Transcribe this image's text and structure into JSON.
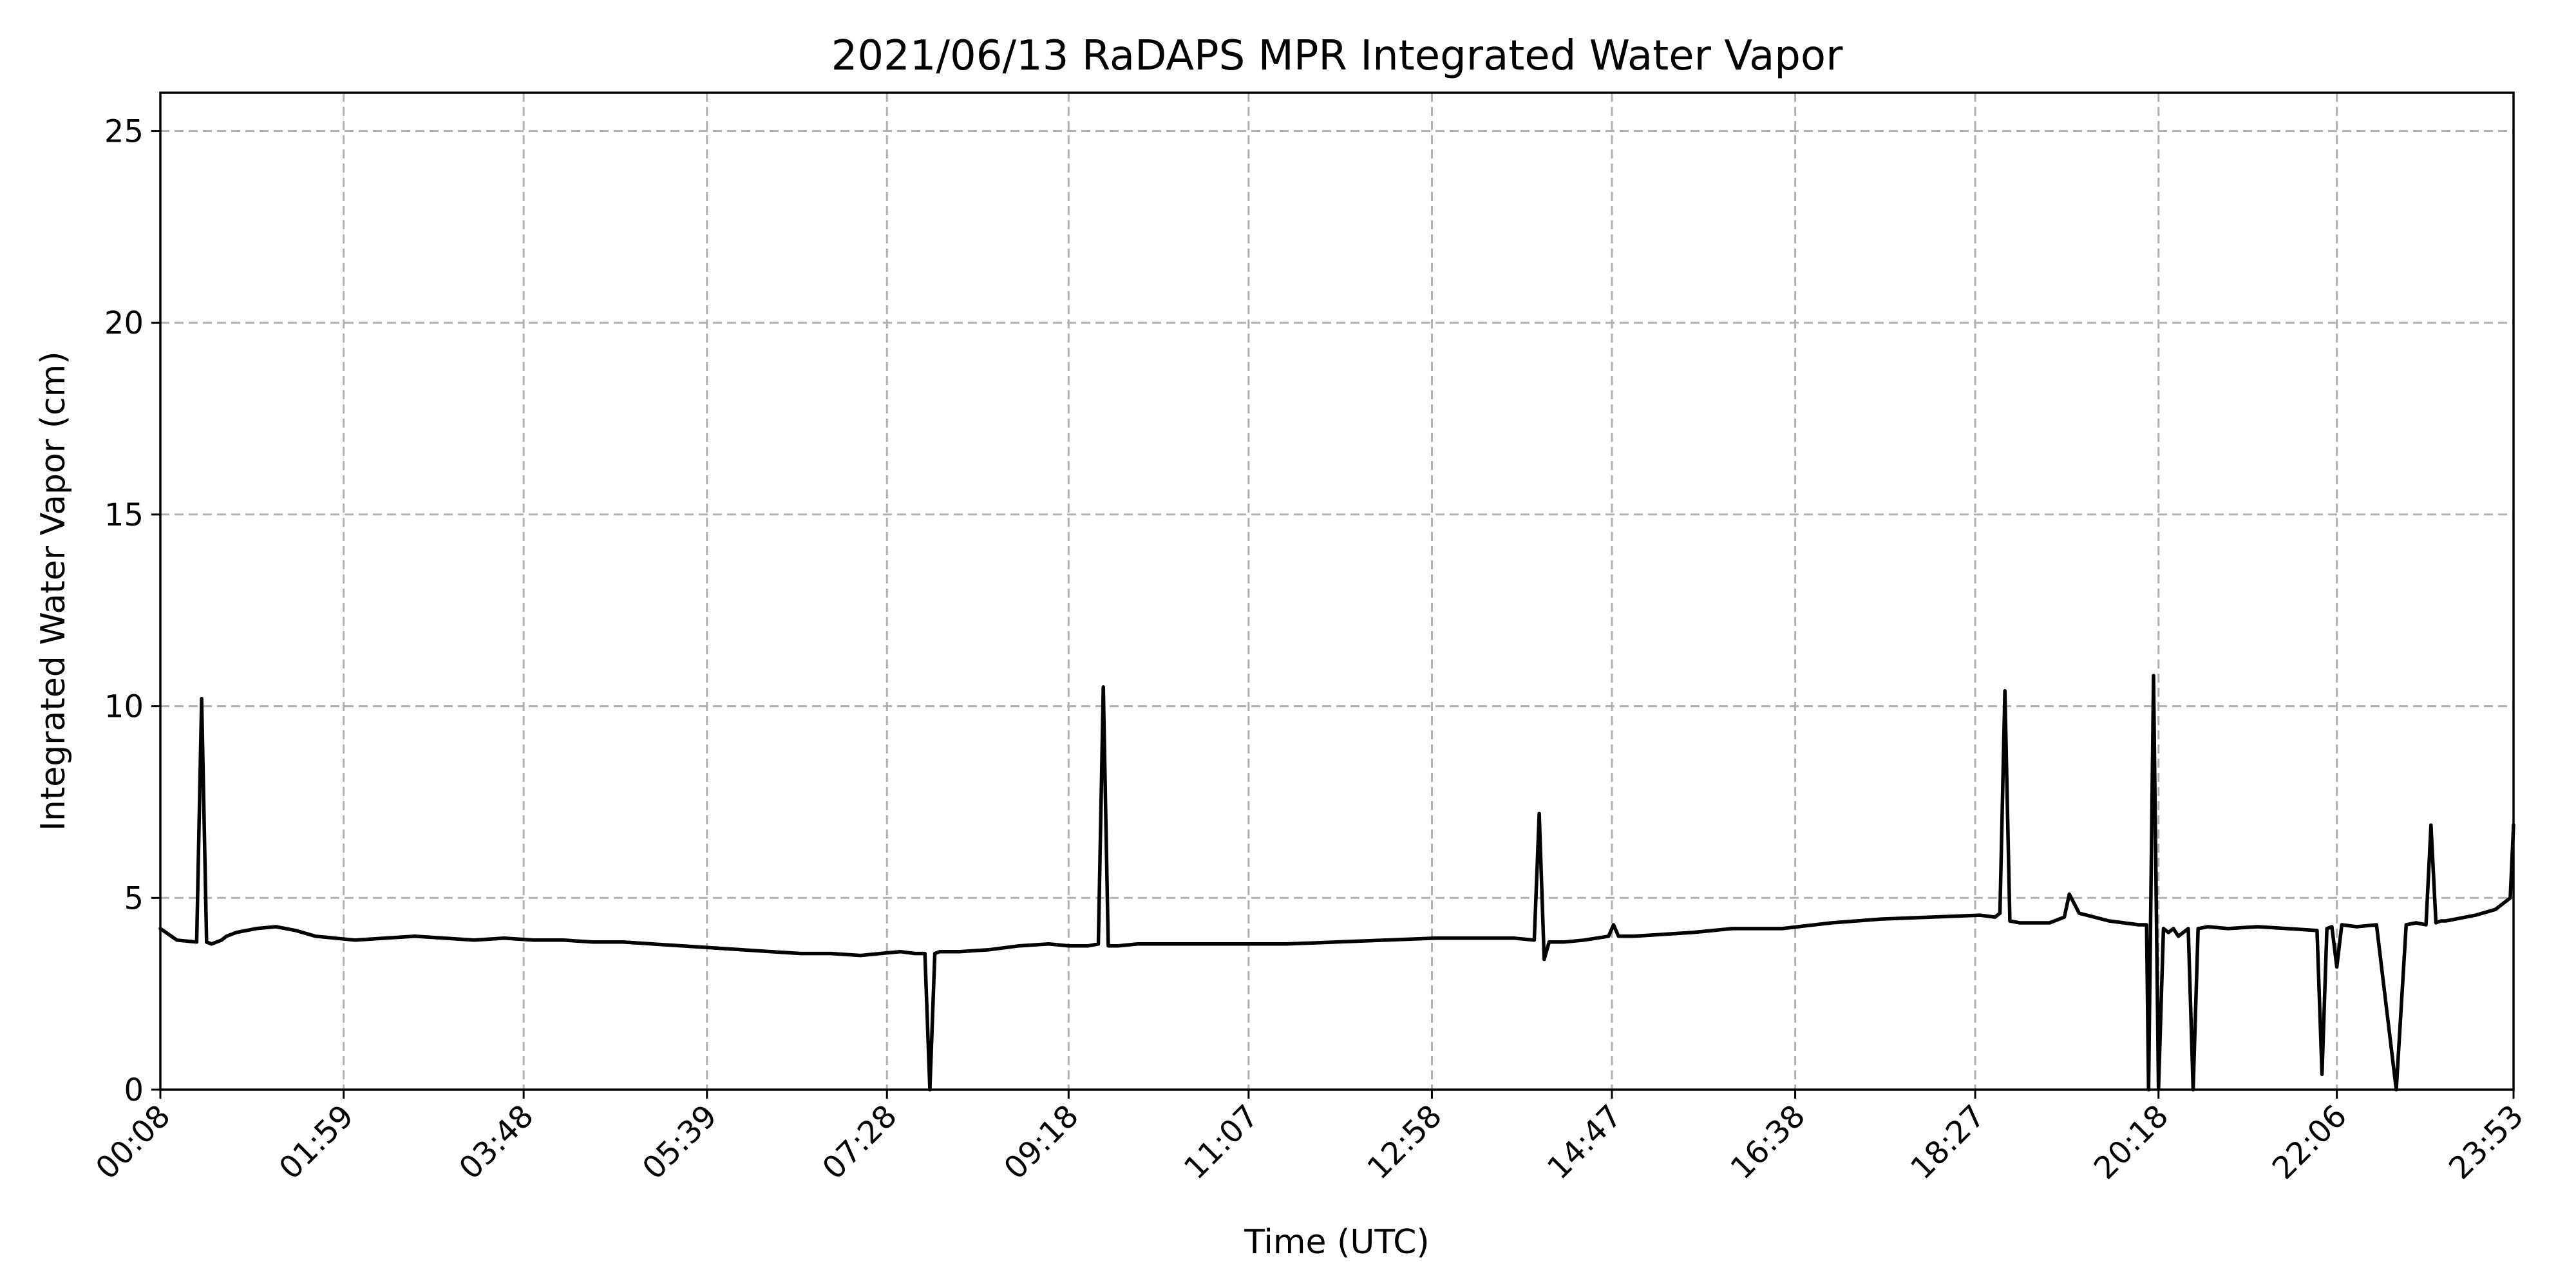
{
  "chart_data": {
    "type": "line",
    "title": "2021/06/13 RaDAPS MPR Integrated Water Vapor",
    "xlabel": "Time (UTC)",
    "ylabel": "Integrated Water Vapor (cm)",
    "x_unit": "hours (UTC)",
    "xlim": [
      0.1333,
      23.8833
    ],
    "ylim": [
      0,
      26
    ],
    "x_ticks": [
      {
        "value": 0.1333,
        "label": "00:08"
      },
      {
        "value": 1.9833,
        "label": "01:59"
      },
      {
        "value": 3.8,
        "label": "03:48"
      },
      {
        "value": 5.65,
        "label": "05:39"
      },
      {
        "value": 7.4667,
        "label": "07:28"
      },
      {
        "value": 9.3,
        "label": "09:18"
      },
      {
        "value": 11.1167,
        "label": "11:07"
      },
      {
        "value": 12.9667,
        "label": "12:58"
      },
      {
        "value": 14.7833,
        "label": "14:47"
      },
      {
        "value": 16.6333,
        "label": "16:38"
      },
      {
        "value": 18.45,
        "label": "18:27"
      },
      {
        "value": 20.3,
        "label": "20:18"
      },
      {
        "value": 22.1,
        "label": "22:06"
      },
      {
        "value": 23.8833,
        "label": "23:53"
      }
    ],
    "y_ticks": [
      {
        "value": 0,
        "label": "0"
      },
      {
        "value": 5,
        "label": "5"
      },
      {
        "value": 10,
        "label": "10"
      },
      {
        "value": 15,
        "label": "15"
      },
      {
        "value": 20,
        "label": "20"
      },
      {
        "value": 25,
        "label": "25"
      }
    ],
    "grid": true,
    "series": [
      {
        "color": "#000000",
        "x": [
          0.1333,
          0.3,
          0.5,
          0.55,
          0.6,
          0.65,
          0.7,
          0.75,
          0.8,
          0.9,
          1.1,
          1.3,
          1.5,
          1.7,
          1.9,
          2.1,
          2.4,
          2.7,
          3.0,
          3.3,
          3.6,
          3.9,
          4.2,
          4.5,
          4.8,
          5.1,
          5.4,
          5.7,
          6.0,
          6.3,
          6.6,
          6.9,
          7.2,
          7.4,
          7.6,
          7.75,
          7.85,
          7.9,
          7.95,
          8.0,
          8.2,
          8.5,
          8.8,
          9.1,
          9.3,
          9.5,
          9.6,
          9.65,
          9.7,
          9.8,
          10.0,
          10.5,
          11.0,
          11.5,
          12.0,
          12.5,
          13.0,
          13.5,
          13.8,
          14.0,
          14.05,
          14.1,
          14.15,
          14.2,
          14.3,
          14.5,
          14.75,
          14.8,
          14.85,
          15.0,
          15.3,
          15.6,
          16.0,
          16.5,
          17.0,
          17.5,
          18.0,
          18.5,
          18.65,
          18.7,
          18.75,
          18.8,
          18.9,
          19.2,
          19.35,
          19.4,
          19.5,
          19.8,
          20.1,
          20.18,
          20.2,
          20.25,
          20.3,
          20.35,
          20.4,
          20.45,
          20.5,
          20.6,
          20.65,
          20.7,
          20.8,
          21.0,
          21.3,
          21.6,
          21.9,
          21.95,
          22.0,
          22.05,
          22.1,
          22.15,
          22.3,
          22.5,
          22.7,
          22.8,
          22.9,
          23.0,
          23.05,
          23.1,
          23.15,
          23.2,
          23.3,
          23.5,
          23.7,
          23.85,
          23.8833
        ],
        "y": [
          4.2,
          3.9,
          3.85,
          10.2,
          3.85,
          3.8,
          3.85,
          3.9,
          4.0,
          4.1,
          4.2,
          4.25,
          4.15,
          4.0,
          3.95,
          3.9,
          3.95,
          4.0,
          3.95,
          3.9,
          3.95,
          3.9,
          3.9,
          3.85,
          3.85,
          3.8,
          3.75,
          3.7,
          3.65,
          3.6,
          3.55,
          3.55,
          3.5,
          3.55,
          3.6,
          3.55,
          3.55,
          0.0,
          3.55,
          3.6,
          3.6,
          3.65,
          3.75,
          3.8,
          3.75,
          3.75,
          3.8,
          10.5,
          3.75,
          3.75,
          3.8,
          3.8,
          3.8,
          3.8,
          3.85,
          3.9,
          3.95,
          3.95,
          3.95,
          3.9,
          7.2,
          3.4,
          3.85,
          3.85,
          3.85,
          3.9,
          4.0,
          4.3,
          4.0,
          4.0,
          4.05,
          4.1,
          4.2,
          4.2,
          4.35,
          4.45,
          4.5,
          4.55,
          4.5,
          4.6,
          10.4,
          4.4,
          4.35,
          4.35,
          4.5,
          5.1,
          4.6,
          4.4,
          4.3,
          4.3,
          0.0,
          10.8,
          0.0,
          4.2,
          4.1,
          4.2,
          4.0,
          4.2,
          0.0,
          4.2,
          4.25,
          4.2,
          4.25,
          4.2,
          4.15,
          0.4,
          4.2,
          4.25,
          3.2,
          4.3,
          4.25,
          4.3,
          0.0,
          4.3,
          4.35,
          4.3,
          6.9,
          4.35,
          4.4,
          4.4,
          4.45,
          4.55,
          4.7,
          5.0,
          6.9
        ]
      }
    ]
  }
}
